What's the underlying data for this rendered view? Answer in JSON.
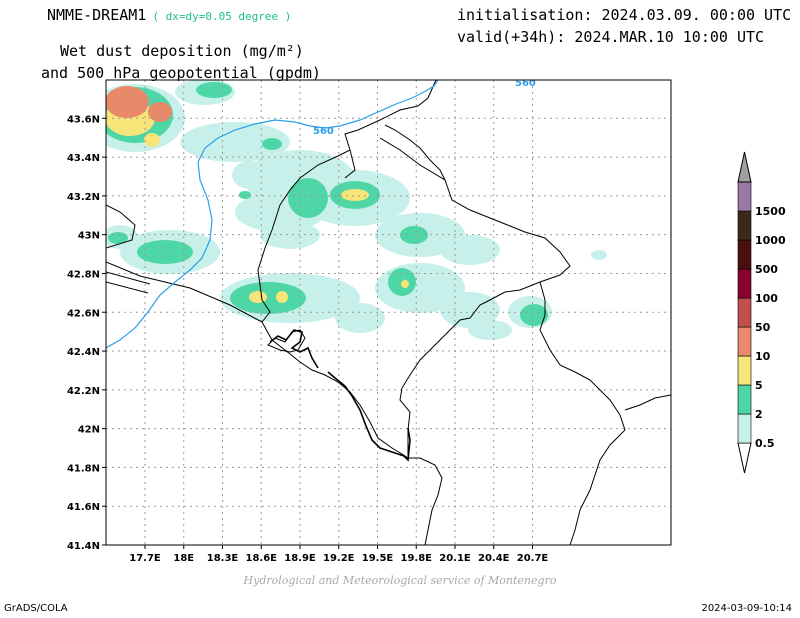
{
  "header": {
    "model": "NMME-DREAM1",
    "resolution": "( dx=dy=0.05 degree )",
    "title_line1": "Wet dust deposition (mg/m²)",
    "title_line2": "and 500 hPa geopotential (gpdm)",
    "initialisation": "initialisation: 2024.03.09. 00:00 UTC",
    "valid": "valid(+34h): 2024.MAR.10 10:00 UTC"
  },
  "map": {
    "lon_ticks": [
      "17.7E",
      "18E",
      "18.3E",
      "18.6E",
      "18.9E",
      "19.2E",
      "19.5E",
      "19.8E",
      "20.1E",
      "20.4E",
      "20.7E"
    ],
    "lat_ticks": [
      "43.6N",
      "43.4N",
      "43.2N",
      "43N",
      "42.8N",
      "42.6N",
      "42.4N",
      "42.2N",
      "42N",
      "41.8N",
      "41.6N",
      "41.4N"
    ],
    "contour_labels": [
      "560",
      "560"
    ],
    "colors": {
      "c05": "#c8f0ea",
      "c2": "#4fd6a6",
      "c5": "#f8e57a",
      "c10": "#e8896a",
      "c50": "#c0504a",
      "c100": "#8c0030",
      "c500": "#4a1010",
      "c1000": "#3a2a1a",
      "c1500": "#9a78a8",
      "contour": "#2aa0e8"
    }
  },
  "legend": {
    "levels": [
      "0.5",
      "2",
      "5",
      "10",
      "50",
      "100",
      "500",
      "1000",
      "1500"
    ]
  },
  "footer": {
    "credit": "Hydrological and Meteorological service of Montenegro",
    "software": "GrADS/COLA",
    "timestamp": "2024-03-09-10:14"
  }
}
